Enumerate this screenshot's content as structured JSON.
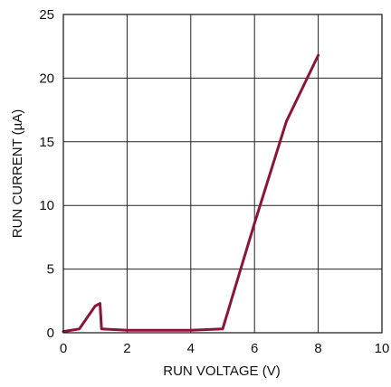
{
  "chart_data": {
    "type": "line",
    "xlabel": "RUN VOLTAGE (V)",
    "ylabel": "RUN CURRENT (µA)",
    "xlim": [
      0,
      10
    ],
    "ylim": [
      0,
      25
    ],
    "xticks": [
      0,
      2,
      4,
      6,
      8,
      10
    ],
    "yticks": [
      0,
      5,
      10,
      15,
      20,
      25
    ],
    "grid": true,
    "series": [
      {
        "color": "#8B1538",
        "x": [
          0,
          0.5,
          1.0,
          1.15,
          1.2,
          2,
          4,
          5,
          6,
          7,
          8
        ],
        "y": [
          0.1,
          0.3,
          2.1,
          2.3,
          0.3,
          0.2,
          0.2,
          0.3,
          8.6,
          16.6,
          21.8
        ]
      }
    ]
  }
}
